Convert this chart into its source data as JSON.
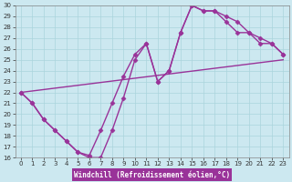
{
  "xlabel": "Windchill (Refroidissement éolien,°C)",
  "bg_color": "#cce8f0",
  "line_color": "#993399",
  "grid_color": "#aad4dc",
  "xlim": [
    -0.5,
    23.5
  ],
  "ylim": [
    16,
    30
  ],
  "xticks": [
    0,
    1,
    2,
    3,
    4,
    5,
    6,
    7,
    8,
    9,
    10,
    11,
    12,
    13,
    14,
    15,
    16,
    17,
    18,
    19,
    20,
    21,
    22,
    23
  ],
  "yticks": [
    16,
    17,
    18,
    19,
    20,
    21,
    22,
    23,
    24,
    25,
    26,
    27,
    28,
    29,
    30
  ],
  "line1_x": [
    0,
    1,
    2,
    3,
    4,
    5,
    6,
    7,
    8,
    9,
    10,
    11,
    12,
    13,
    14,
    15,
    16,
    17,
    18,
    19,
    20,
    21,
    22,
    23
  ],
  "line1_y": [
    22,
    21,
    19.5,
    18.5,
    17.5,
    16.5,
    16.2,
    18.5,
    21.0,
    23.5,
    25.5,
    26.5,
    23.0,
    24.0,
    27.5,
    30.0,
    29.5,
    29.5,
    28.5,
    27.5,
    27.5,
    27.0,
    26.5,
    25.5
  ],
  "line2_x": [
    0,
    1,
    2,
    3,
    4,
    5,
    6,
    7,
    8,
    9,
    10,
    11,
    12,
    13,
    14,
    15,
    16,
    17,
    18,
    19,
    20,
    21,
    22,
    23
  ],
  "line2_y": [
    22,
    21,
    19.5,
    18.5,
    17.5,
    16.5,
    16.0,
    16.0,
    18.5,
    21.5,
    25.0,
    26.5,
    23.0,
    24.0,
    27.5,
    30.0,
    29.5,
    29.5,
    29.0,
    28.5,
    27.5,
    26.5,
    26.5,
    25.5
  ],
  "line3_x": [
    0,
    23
  ],
  "line3_y": [
    22,
    25.0
  ],
  "marker": "D",
  "markersize": 2.5,
  "linewidth": 1.0,
  "xlabel_facecolor": "#993399",
  "xlabel_fontsize": 5.5,
  "tick_fontsize": 5,
  "xlabel_color": "white"
}
